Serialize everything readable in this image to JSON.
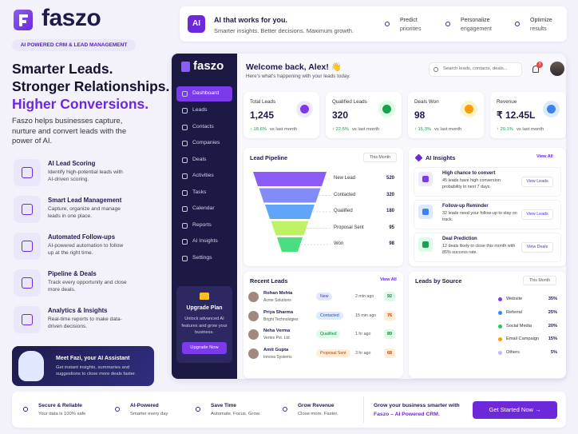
{
  "brand": {
    "name": "faszo",
    "tagline": "AI POWERED CRM & LEAD MANAGEMENT"
  },
  "hero": {
    "headline": [
      "Smarter Leads.",
      "Stronger Relationships.",
      "Higher Conversions."
    ],
    "description": "Faszo helps businesses capture, nurture and convert leads with the power of AI."
  },
  "features": [
    {
      "title": "AI Lead Scoring",
      "text": "Identify high-potential leads with AI-driven scoring."
    },
    {
      "title": "Smart Lead Management",
      "text": "Capture, organize and manage leads in one place."
    },
    {
      "title": "Automated Follow-ups",
      "text": "AI-powered automation to follow up at the right time."
    },
    {
      "title": "Pipeline & Deals",
      "text": "Track every opportunity and close more deals."
    },
    {
      "title": "Analytics & Insights",
      "text": "Real-time reports to make data-driven decisions."
    }
  ],
  "assistant": {
    "title": "Meet Fazi, your AI Assistant",
    "text": "Get instant insights, summaries and suggestions to close more deals faster."
  },
  "top_banner": {
    "badge": "AI",
    "title": "AI that works for you.",
    "subtitle": "Smarter insights. Better decisions. Maximum growth.",
    "items": [
      {
        "title": "Predict",
        "text": "priorities"
      },
      {
        "title": "Personalize",
        "text": "engagement"
      },
      {
        "title": "Optimize",
        "text": "results"
      }
    ]
  },
  "sidebar": {
    "logo": "faszo",
    "menu": [
      "Dashboard",
      "Leads",
      "Contacts",
      "Companies",
      "Deals",
      "Activities",
      "Tasks",
      "Calendar",
      "Reports",
      "AI Insights",
      "Settings"
    ],
    "upgrade": {
      "title": "Upgrade Plan",
      "text": "Unlock advanced AI features and grow your business.",
      "button": "Upgrade Now"
    }
  },
  "header": {
    "welcome": "Welcome back, Alex! 👋",
    "subtitle": "Here's what's happening with your leads today.",
    "search": "Search leads, contacts, deals...",
    "notifications": "3"
  },
  "stats": [
    {
      "label": "Total Leads",
      "value": "1,245",
      "change": "↑ 18.6%",
      "period": "vs last month"
    },
    {
      "label": "Qualified Leads",
      "value": "320",
      "change": "↑ 22.5%",
      "period": "vs last month"
    },
    {
      "label": "Deals Won",
      "value": "98",
      "change": "↑ 15.3%",
      "period": "vs last month"
    },
    {
      "label": "Revenue",
      "value": "₹ 12.45L",
      "change": "↑ 20.1%",
      "period": "vs last month"
    }
  ],
  "pipeline": {
    "title": "Lead Pipeline",
    "filter": "This Month",
    "stages": [
      {
        "name": "New Lead",
        "value": 520
      },
      {
        "name": "Contacted",
        "value": 320
      },
      {
        "name": "Qualified",
        "value": 180
      },
      {
        "name": "Proposal Sent",
        "value": 95
      },
      {
        "name": "Won",
        "value": 98
      }
    ]
  },
  "insights": {
    "title": "AI Insights",
    "link": "View All",
    "items": [
      {
        "title": "High chance to convert",
        "text": "45 leads have high conversion probability in next 7 days.",
        "button": "View Leads"
      },
      {
        "title": "Follow-up Reminder",
        "text": "32 leads need your follow-up to stay on track.",
        "button": "View Leads"
      },
      {
        "title": "Deal Prediction",
        "text": "12 deals likely to close this month with 85% success rate.",
        "button": "View Deals"
      }
    ]
  },
  "recent": {
    "title": "Recent Leads",
    "link": "View All",
    "rows": [
      {
        "name": "Rohan Mehta",
        "company": "Acme Solutions",
        "status": "New",
        "time": "2 min ago",
        "score": 92
      },
      {
        "name": "Priya Sharma",
        "company": "Bright Technologies",
        "status": "Contacted",
        "time": "15 min ago",
        "score": 76
      },
      {
        "name": "Neha Verma",
        "company": "Vertex Pvt. Ltd.",
        "status": "Qualified",
        "time": "1 hr ago",
        "score": 89
      },
      {
        "name": "Amit Gupta",
        "company": "Innova Systems",
        "status": "Proposal Sent",
        "time": "3 hr ago",
        "score": 68
      }
    ]
  },
  "sources": {
    "title": "Leads by Source",
    "filter": "This Month",
    "items": [
      {
        "name": "Website",
        "value": 35,
        "label": "35%",
        "color": "#7c3aed"
      },
      {
        "name": "Referral",
        "value": 25,
        "label": "25%",
        "color": "#3b82f6"
      },
      {
        "name": "Social Media",
        "value": 20,
        "label": "20%",
        "color": "#22c55e"
      },
      {
        "name": "Email Campaign",
        "value": 15,
        "label": "15%",
        "color": "#f59e0b"
      },
      {
        "name": "Others",
        "value": 5,
        "label": "5%",
        "color": "#c4b5fd"
      }
    ]
  },
  "footer": {
    "items": [
      {
        "title": "Secure & Reliable",
        "text": "Your data is 100% safe"
      },
      {
        "title": "AI-Powered",
        "text": "Smarter every day"
      },
      {
        "title": "Save Time",
        "text": "Automate. Focus. Grow."
      },
      {
        "title": "Grow Revenue",
        "text": "Close more. Faster."
      }
    ],
    "cta": {
      "text": "Grow your business smarter with",
      "brand": "Faszo – AI Powered CRM.",
      "button": "Get Started Now →"
    }
  }
}
